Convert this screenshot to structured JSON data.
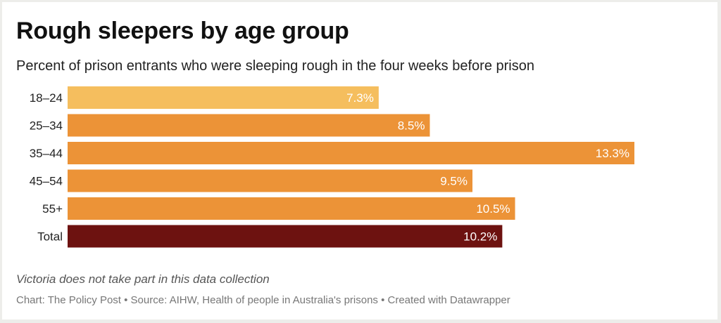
{
  "chart_data": {
    "type": "bar",
    "orientation": "horizontal",
    "title": "Rough sleepers by age group",
    "subtitle": "Percent of prison entrants who were sleeping rough in the four weeks before prison",
    "categories": [
      "18–24",
      "25–34",
      "35–44",
      "45–54",
      "55+",
      "Total"
    ],
    "values": [
      7.3,
      8.5,
      13.3,
      9.5,
      10.5,
      10.2
    ],
    "value_labels": [
      "7.3%",
      "8.5%",
      "13.3%",
      "9.5%",
      "10.5%",
      "10.2%"
    ],
    "bar_colors": [
      "#f5be5e",
      "#ec9337",
      "#ec9337",
      "#ec9337",
      "#ec9337",
      "#6d1210"
    ],
    "xlim": [
      0,
      13.3
    ],
    "unit": "%",
    "grid": false,
    "legend": "none",
    "note": "Victoria does not take part in this data collection",
    "credits": "Chart: The Policy Post • Source: AIHW, Health of people in Australia's prisons • Created with Datawrapper"
  }
}
